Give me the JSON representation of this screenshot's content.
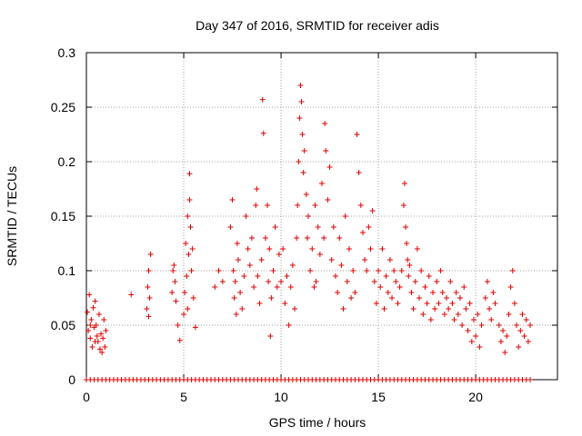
{
  "chart_data": {
    "type": "scatter",
    "title": "Day 347 of 2016, SRMTID for receiver adis",
    "xlabel": "GPS time / hours",
    "ylabel": "SRMTID / TECUs",
    "xlim": [
      0,
      24.2
    ],
    "ylim": [
      0,
      0.3
    ],
    "xticks": [
      0,
      5,
      10,
      15,
      20
    ],
    "xtick_labels": [
      "0",
      "5",
      "10",
      "15",
      "20"
    ],
    "yticks": [
      0,
      0.05,
      0.1,
      0.15,
      0.2,
      0.25,
      0.3
    ],
    "ytick_labels": [
      "0",
      "0.05",
      "0.1",
      "0.15",
      "0.2",
      "0.25",
      "0.3"
    ],
    "grid": true,
    "marker": "+",
    "color": "#e00000",
    "zero_line_points_x": [
      0.0,
      0.2,
      0.4,
      0.6,
      0.8,
      1.0,
      1.2,
      1.4,
      1.6,
      1.8,
      2.0,
      2.2,
      2.4,
      2.6,
      2.8,
      3.0,
      3.2,
      3.4,
      3.6,
      3.8,
      4.0,
      4.2,
      4.4,
      4.6,
      4.8,
      5.0,
      5.2,
      5.4,
      5.6,
      5.8,
      6.0,
      6.2,
      6.4,
      6.6,
      6.8,
      7.0,
      7.2,
      7.4,
      7.6,
      7.8,
      8.0,
      8.2,
      8.4,
      8.6,
      8.8,
      9.0,
      9.2,
      9.4,
      9.6,
      9.8,
      10.0,
      10.2,
      10.4,
      10.6,
      10.8,
      11.0,
      11.2,
      11.4,
      11.6,
      11.8,
      12.0,
      12.2,
      12.4,
      12.6,
      12.8,
      13.0,
      13.2,
      13.4,
      13.6,
      13.8,
      14.0,
      14.2,
      14.4,
      14.6,
      14.8,
      15.0,
      15.2,
      15.4,
      15.6,
      15.8,
      16.0,
      16.2,
      16.4,
      16.6,
      16.8,
      17.0,
      17.2,
      17.4,
      17.6,
      17.8,
      18.0,
      18.2,
      18.4,
      18.6,
      18.8,
      19.0,
      19.2,
      19.4,
      19.6,
      19.8,
      20.0,
      20.2,
      20.4,
      20.6,
      20.8,
      21.0,
      21.2,
      21.4,
      21.6,
      21.8,
      22.0,
      22.2,
      22.4,
      22.6,
      22.8
    ],
    "series": [
      {
        "name": "SRMTID",
        "points": [
          [
            0.05,
            0.062
          ],
          [
            0.1,
            0.045
          ],
          [
            0.15,
            0.078
          ],
          [
            0.2,
            0.038
          ],
          [
            0.25,
            0.055
          ],
          [
            0.3,
            0.03
          ],
          [
            0.35,
            0.066
          ],
          [
            0.4,
            0.048
          ],
          [
            0.45,
            0.072
          ],
          [
            0.5,
            0.05
          ],
          [
            0.55,
            0.04
          ],
          [
            0.6,
            0.035
          ],
          [
            0.7,
            0.028
          ],
          [
            0.75,
            0.042
          ],
          [
            0.8,
            0.025
          ],
          [
            0.85,
            0.038
          ],
          [
            0.9,
            0.055
          ],
          [
            0.95,
            0.03
          ],
          [
            1.0,
            0.045
          ],
          [
            0.65,
            0.06
          ],
          [
            0.45,
            0.035
          ],
          [
            0.2,
            0.05
          ],
          [
            2.3,
            0.078
          ],
          [
            3.1,
            0.065
          ],
          [
            3.15,
            0.085
          ],
          [
            3.2,
            0.1
          ],
          [
            3.25,
            0.075
          ],
          [
            3.3,
            0.115
          ],
          [
            3.2,
            0.058
          ],
          [
            4.4,
            0.08
          ],
          [
            4.45,
            0.1
          ],
          [
            4.5,
            0.105
          ],
          [
            4.55,
            0.09
          ],
          [
            4.6,
            0.072
          ],
          [
            4.7,
            0.05
          ],
          [
            4.8,
            0.036
          ],
          [
            5.0,
            0.06
          ],
          [
            5.05,
            0.08
          ],
          [
            5.1,
            0.125
          ],
          [
            5.15,
            0.095
          ],
          [
            5.2,
            0.15
          ],
          [
            5.25,
            0.115
          ],
          [
            5.3,
            0.165
          ],
          [
            5.35,
            0.14
          ],
          [
            5.4,
            0.1
          ],
          [
            5.45,
            0.12
          ],
          [
            5.5,
            0.075
          ],
          [
            5.3,
            0.189
          ],
          [
            5.6,
            0.048
          ],
          [
            5.2,
            0.065
          ],
          [
            6.6,
            0.085
          ],
          [
            6.8,
            0.1
          ],
          [
            7.0,
            0.09
          ],
          [
            7.4,
            0.14
          ],
          [
            7.5,
            0.165
          ],
          [
            7.55,
            0.1
          ],
          [
            7.6,
            0.075
          ],
          [
            7.65,
            0.09
          ],
          [
            7.7,
            0.06
          ],
          [
            7.75,
            0.125
          ],
          [
            7.8,
            0.11
          ],
          [
            7.9,
            0.08
          ],
          [
            8.0,
            0.065
          ],
          [
            8.1,
            0.095
          ],
          [
            8.2,
            0.15
          ],
          [
            8.3,
            0.12
          ],
          [
            8.4,
            0.105
          ],
          [
            8.5,
            0.13
          ],
          [
            8.6,
            0.085
          ],
          [
            8.7,
            0.16
          ],
          [
            8.75,
            0.175
          ],
          [
            8.8,
            0.095
          ],
          [
            8.9,
            0.07
          ],
          [
            9.0,
            0.11
          ],
          [
            9.05,
            0.257
          ],
          [
            9.1,
            0.226
          ],
          [
            9.2,
            0.13
          ],
          [
            9.3,
            0.16
          ],
          [
            9.35,
            0.09
          ],
          [
            9.4,
            0.12
          ],
          [
            9.45,
            0.04
          ],
          [
            9.5,
            0.075
          ],
          [
            9.6,
            0.1
          ],
          [
            9.7,
            0.14
          ],
          [
            9.8,
            0.085
          ],
          [
            9.9,
            0.115
          ],
          [
            10.0,
            0.09
          ],
          [
            10.1,
            0.12
          ],
          [
            10.2,
            0.07
          ],
          [
            10.3,
            0.095
          ],
          [
            10.4,
            0.05
          ],
          [
            10.5,
            0.085
          ],
          [
            10.6,
            0.105
          ],
          [
            10.7,
            0.065
          ],
          [
            10.8,
            0.13
          ],
          [
            10.85,
            0.16
          ],
          [
            10.9,
            0.2
          ],
          [
            10.95,
            0.24
          ],
          [
            11.0,
            0.27
          ],
          [
            11.05,
            0.255
          ],
          [
            11.1,
            0.225
          ],
          [
            11.15,
            0.19
          ],
          [
            11.2,
            0.21
          ],
          [
            11.3,
            0.17
          ],
          [
            11.35,
            0.13
          ],
          [
            11.4,
            0.15
          ],
          [
            11.5,
            0.1
          ],
          [
            11.6,
            0.12
          ],
          [
            11.7,
            0.085
          ],
          [
            11.75,
            0.16
          ],
          [
            11.8,
            0.09
          ],
          [
            11.9,
            0.14
          ],
          [
            12.0,
            0.115
          ],
          [
            12.1,
            0.18
          ],
          [
            12.2,
            0.13
          ],
          [
            12.25,
            0.235
          ],
          [
            12.3,
            0.21
          ],
          [
            12.4,
            0.165
          ],
          [
            12.5,
            0.195
          ],
          [
            12.6,
            0.11
          ],
          [
            12.7,
            0.14
          ],
          [
            12.8,
            0.095
          ],
          [
            12.9,
            0.08
          ],
          [
            13.0,
            0.13
          ],
          [
            13.1,
            0.105
          ],
          [
            13.2,
            0.065
          ],
          [
            13.3,
            0.15
          ],
          [
            13.4,
            0.09
          ],
          [
            13.5,
            0.12
          ],
          [
            13.6,
            0.075
          ],
          [
            13.7,
            0.1
          ],
          [
            13.8,
            0.08
          ],
          [
            13.9,
            0.225
          ],
          [
            14.0,
            0.19
          ],
          [
            14.1,
            0.16
          ],
          [
            14.2,
            0.135
          ],
          [
            14.3,
            0.11
          ],
          [
            14.4,
            0.1
          ],
          [
            14.5,
            0.14
          ],
          [
            14.6,
            0.12
          ],
          [
            14.7,
            0.155
          ],
          [
            14.8,
            0.09
          ],
          [
            14.9,
            0.07
          ],
          [
            15.0,
            0.1
          ],
          [
            15.1,
            0.085
          ],
          [
            15.2,
            0.12
          ],
          [
            15.3,
            0.065
          ],
          [
            15.4,
            0.095
          ],
          [
            15.5,
            0.08
          ],
          [
            15.6,
            0.11
          ],
          [
            15.7,
            0.075
          ],
          [
            15.8,
            0.1
          ],
          [
            15.9,
            0.09
          ],
          [
            16.0,
            0.07
          ],
          [
            16.1,
            0.085
          ],
          [
            16.2,
            0.1
          ],
          [
            16.3,
            0.16
          ],
          [
            16.35,
            0.18
          ],
          [
            16.4,
            0.14
          ],
          [
            16.45,
            0.125
          ],
          [
            16.5,
            0.11
          ],
          [
            16.55,
            0.095
          ],
          [
            16.6,
            0.105
          ],
          [
            16.7,
            0.08
          ],
          [
            16.8,
            0.065
          ],
          [
            16.9,
            0.09
          ],
          [
            17.0,
            0.12
          ],
          [
            17.1,
            0.075
          ],
          [
            17.2,
            0.1
          ],
          [
            17.3,
            0.06
          ],
          [
            17.4,
            0.085
          ],
          [
            17.5,
            0.07
          ],
          [
            17.6,
            0.095
          ],
          [
            17.7,
            0.055
          ],
          [
            17.8,
            0.08
          ],
          [
            17.9,
            0.065
          ],
          [
            18.0,
            0.09
          ],
          [
            18.1,
            0.07
          ],
          [
            18.2,
            0.1
          ],
          [
            18.3,
            0.08
          ],
          [
            18.4,
            0.06
          ],
          [
            18.5,
            0.075
          ],
          [
            18.6,
            0.065
          ],
          [
            18.7,
            0.09
          ],
          [
            18.8,
            0.07
          ],
          [
            18.9,
            0.055
          ],
          [
            19.0,
            0.08
          ],
          [
            19.1,
            0.06
          ],
          [
            19.2,
            0.075
          ],
          [
            19.3,
            0.05
          ],
          [
            19.4,
            0.085
          ],
          [
            19.5,
            0.065
          ],
          [
            19.6,
            0.045
          ],
          [
            19.7,
            0.07
          ],
          [
            19.8,
            0.035
          ],
          [
            19.9,
            0.055
          ],
          [
            20.0,
            0.04
          ],
          [
            20.1,
            0.06
          ],
          [
            20.2,
            0.03
          ],
          [
            20.3,
            0.05
          ],
          [
            20.5,
            0.075
          ],
          [
            20.6,
            0.09
          ],
          [
            20.7,
            0.065
          ],
          [
            20.8,
            0.055
          ],
          [
            20.9,
            0.08
          ],
          [
            21.0,
            0.07
          ],
          [
            21.2,
            0.05
          ],
          [
            21.3,
            0.035
          ],
          [
            21.4,
            0.045
          ],
          [
            21.5,
            0.025
          ],
          [
            21.6,
            0.04
          ],
          [
            21.7,
            0.06
          ],
          [
            21.8,
            0.085
          ],
          [
            21.9,
            0.1
          ],
          [
            22.0,
            0.07
          ],
          [
            22.1,
            0.05
          ],
          [
            22.2,
            0.03
          ],
          [
            22.3,
            0.045
          ],
          [
            22.4,
            0.06
          ],
          [
            22.5,
            0.04
          ],
          [
            22.6,
            0.055
          ],
          [
            22.7,
            0.035
          ],
          [
            22.8,
            0.05
          ]
        ]
      }
    ]
  }
}
